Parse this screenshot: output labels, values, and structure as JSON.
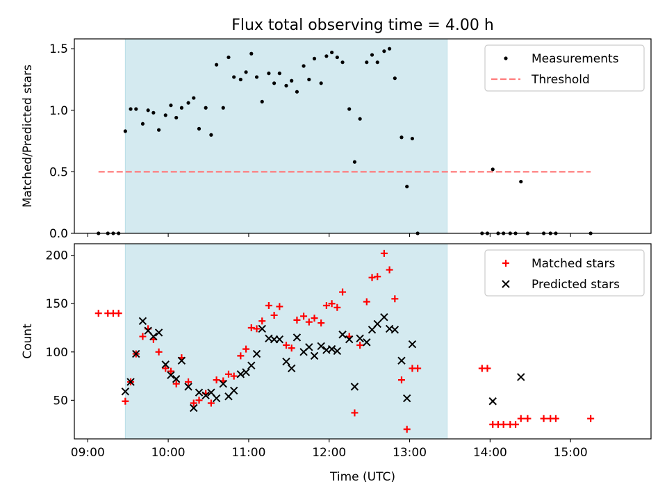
{
  "title": "Flux total observing time = 4.00 h",
  "chart_data": [
    {
      "type": "scatter",
      "ylabel": "Matched/Predicted stars",
      "xlim": [
        "08:50",
        "16:00"
      ],
      "ylim": [
        0,
        1.58
      ],
      "ytick_labels": [
        "0.0",
        "0.5",
        "1.0",
        "1.5"
      ],
      "shaded_interval": {
        "start": "09:28",
        "end": "13:28",
        "color": "#d4eaf0"
      },
      "legend": {
        "position": "top-right"
      },
      "series": [
        {
          "name": "Measurements",
          "marker": "dot",
          "color": "#000000",
          "points": [
            [
              "09:08",
              0.0
            ],
            [
              "09:15",
              0.0
            ],
            [
              "09:19",
              0.0
            ],
            [
              "09:23",
              0.0
            ],
            [
              "09:28",
              0.83
            ],
            [
              "09:32",
              1.01
            ],
            [
              "09:36",
              1.01
            ],
            [
              "09:41",
              0.89
            ],
            [
              "09:45",
              1.0
            ],
            [
              "09:49",
              0.98
            ],
            [
              "09:53",
              0.84
            ],
            [
              "09:58",
              0.96
            ],
            [
              "10:02",
              1.04
            ],
            [
              "10:06",
              0.94
            ],
            [
              "10:10",
              1.02
            ],
            [
              "10:15",
              1.06
            ],
            [
              "10:19",
              1.1
            ],
            [
              "10:23",
              0.85
            ],
            [
              "10:28",
              1.02
            ],
            [
              "10:32",
              0.8
            ],
            [
              "10:36",
              1.37
            ],
            [
              "10:41",
              1.02
            ],
            [
              "10:45",
              1.43
            ],
            [
              "10:49",
              1.27
            ],
            [
              "10:54",
              1.25
            ],
            [
              "10:58",
              1.31
            ],
            [
              "11:02",
              1.46
            ],
            [
              "11:06",
              1.27
            ],
            [
              "11:10",
              1.07
            ],
            [
              "11:15",
              1.3
            ],
            [
              "11:19",
              1.22
            ],
            [
              "11:23",
              1.3
            ],
            [
              "11:28",
              1.2
            ],
            [
              "11:32",
              1.24
            ],
            [
              "11:36",
              1.15
            ],
            [
              "11:41",
              1.36
            ],
            [
              "11:45",
              1.25
            ],
            [
              "11:49",
              1.42
            ],
            [
              "11:54",
              1.22
            ],
            [
              "11:58",
              1.44
            ],
            [
              "12:02",
              1.47
            ],
            [
              "12:06",
              1.43
            ],
            [
              "12:10",
              1.39
            ],
            [
              "12:15",
              1.01
            ],
            [
              "12:19",
              0.58
            ],
            [
              "12:23",
              0.93
            ],
            [
              "12:28",
              1.39
            ],
            [
              "12:32",
              1.45
            ],
            [
              "12:36",
              1.39
            ],
            [
              "12:41",
              1.48
            ],
            [
              "12:45",
              1.5
            ],
            [
              "12:49",
              1.26
            ],
            [
              "12:54",
              0.78
            ],
            [
              "12:58",
              0.38
            ],
            [
              "13:02",
              0.77
            ],
            [
              "13:06",
              0.0
            ],
            [
              "13:54",
              0.0
            ],
            [
              "13:58",
              0.0
            ],
            [
              "14:02",
              0.52
            ],
            [
              "14:06",
              0.0
            ],
            [
              "14:10",
              0.0
            ],
            [
              "14:15",
              0.0
            ],
            [
              "14:19",
              0.0
            ],
            [
              "14:23",
              0.42
            ],
            [
              "14:28",
              0.0
            ],
            [
              "14:40",
              0.0
            ],
            [
              "14:45",
              0.0
            ],
            [
              "14:49",
              0.0
            ],
            [
              "15:15",
              0.0
            ]
          ]
        },
        {
          "name": "Threshold",
          "type": "line",
          "style": "dashed",
          "color": "#ff7b7b",
          "points": [
            [
              "09:08",
              0.5
            ],
            [
              "15:15",
              0.5
            ]
          ]
        }
      ]
    },
    {
      "type": "scatter",
      "xlabel": "Time (UTC)",
      "ylabel": "Count",
      "xlim": [
        "08:50",
        "16:00"
      ],
      "ylim": [
        10,
        212
      ],
      "xtick_labels": [
        "09:00",
        "10:00",
        "11:00",
        "12:00",
        "13:00",
        "14:00",
        "15:00"
      ],
      "ytick_labels": [
        "50",
        "100",
        "150",
        "200"
      ],
      "shaded_interval": {
        "start": "09:28",
        "end": "13:28",
        "color": "#d4eaf0"
      },
      "legend": {
        "position": "top-right"
      },
      "series": [
        {
          "name": "Matched stars",
          "marker": "plus",
          "color": "#ff0000",
          "points": [
            [
              "09:08",
              140
            ],
            [
              "09:15",
              140
            ],
            [
              "09:19",
              140
            ],
            [
              "09:23",
              140
            ],
            [
              "09:28",
              49
            ],
            [
              "09:32",
              69
            ],
            [
              "09:36",
              98
            ],
            [
              "09:41",
              116
            ],
            [
              "09:45",
              124
            ],
            [
              "09:49",
              113
            ],
            [
              "09:53",
              100
            ],
            [
              "09:58",
              83
            ],
            [
              "10:02",
              80
            ],
            [
              "10:06",
              67
            ],
            [
              "10:10",
              94
            ],
            [
              "10:15",
              69
            ],
            [
              "10:19",
              47
            ],
            [
              "10:23",
              50
            ],
            [
              "10:28",
              57
            ],
            [
              "10:32",
              47
            ],
            [
              "10:36",
              71
            ],
            [
              "10:41",
              70
            ],
            [
              "10:45",
              77
            ],
            [
              "10:49",
              75
            ],
            [
              "10:54",
              96
            ],
            [
              "10:58",
              103
            ],
            [
              "11:02",
              125
            ],
            [
              "11:06",
              124
            ],
            [
              "11:10",
              132
            ],
            [
              "11:15",
              148
            ],
            [
              "11:19",
              138
            ],
            [
              "11:23",
              147
            ],
            [
              "11:28",
              107
            ],
            [
              "11:32",
              104
            ],
            [
              "11:36",
              133
            ],
            [
              "11:41",
              137
            ],
            [
              "11:45",
              131
            ],
            [
              "11:49",
              135
            ],
            [
              "11:54",
              130
            ],
            [
              "11:58",
              148
            ],
            [
              "12:02",
              150
            ],
            [
              "12:06",
              146
            ],
            [
              "12:10",
              162
            ],
            [
              "12:15",
              116
            ],
            [
              "12:19",
              37
            ],
            [
              "12:23",
              107
            ],
            [
              "12:28",
              152
            ],
            [
              "12:32",
              177
            ],
            [
              "12:36",
              178
            ],
            [
              "12:41",
              202
            ],
            [
              "12:45",
              185
            ],
            [
              "12:49",
              155
            ],
            [
              "12:54",
              71
            ],
            [
              "12:58",
              20
            ],
            [
              "13:02",
              83
            ],
            [
              "13:06",
              83
            ],
            [
              "13:54",
              83
            ],
            [
              "13:58",
              83
            ],
            [
              "14:02",
              25
            ],
            [
              "14:06",
              25
            ],
            [
              "14:10",
              25
            ],
            [
              "14:15",
              25
            ],
            [
              "14:19",
              25
            ],
            [
              "14:23",
              31
            ],
            [
              "14:28",
              31
            ],
            [
              "14:40",
              31
            ],
            [
              "14:45",
              31
            ],
            [
              "14:49",
              31
            ],
            [
              "15:15",
              31
            ]
          ]
        },
        {
          "name": "Predicted stars",
          "marker": "x",
          "color": "#000000",
          "points": [
            [
              "09:28",
              59
            ],
            [
              "09:32",
              69
            ],
            [
              "09:36",
              98
            ],
            [
              "09:41",
              132
            ],
            [
              "09:45",
              122
            ],
            [
              "09:49",
              116
            ],
            [
              "09:53",
              120
            ],
            [
              "09:58",
              87
            ],
            [
              "10:02",
              76
            ],
            [
              "10:06",
              72
            ],
            [
              "10:10",
              91
            ],
            [
              "10:15",
              64
            ],
            [
              "10:19",
              42
            ],
            [
              "10:23",
              58
            ],
            [
              "10:28",
              55
            ],
            [
              "10:32",
              58
            ],
            [
              "10:36",
              52
            ],
            [
              "10:41",
              67
            ],
            [
              "10:45",
              54
            ],
            [
              "10:49",
              60
            ],
            [
              "10:54",
              77
            ],
            [
              "10:58",
              79
            ],
            [
              "11:02",
              86
            ],
            [
              "11:06",
              98
            ],
            [
              "11:10",
              124
            ],
            [
              "11:15",
              114
            ],
            [
              "11:19",
              113
            ],
            [
              "11:23",
              113
            ],
            [
              "11:28",
              90
            ],
            [
              "11:32",
              83
            ],
            [
              "11:36",
              115
            ],
            [
              "11:41",
              100
            ],
            [
              "11:45",
              105
            ],
            [
              "11:49",
              96
            ],
            [
              "11:54",
              106
            ],
            [
              "11:58",
              102
            ],
            [
              "12:02",
              103
            ],
            [
              "12:06",
              101
            ],
            [
              "12:10",
              118
            ],
            [
              "12:15",
              113
            ],
            [
              "12:19",
              64
            ],
            [
              "12:23",
              114
            ],
            [
              "12:28",
              110
            ],
            [
              "12:32",
              123
            ],
            [
              "12:36",
              129
            ],
            [
              "12:41",
              136
            ],
            [
              "12:45",
              124
            ],
            [
              "12:49",
              123
            ],
            [
              "12:54",
              91
            ],
            [
              "12:58",
              52
            ],
            [
              "13:02",
              108
            ],
            [
              "14:02",
              49
            ],
            [
              "14:23",
              74
            ]
          ]
        }
      ]
    }
  ]
}
